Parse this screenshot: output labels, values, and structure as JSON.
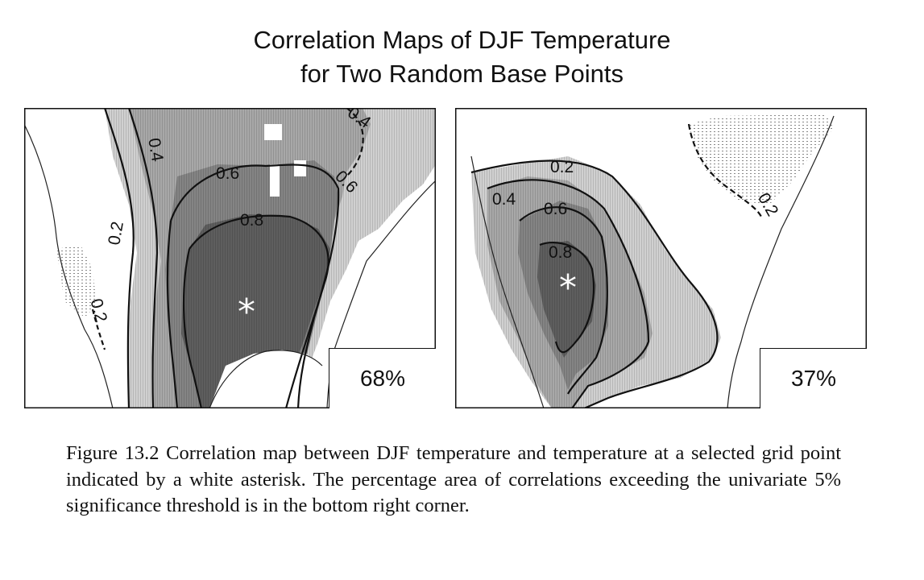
{
  "figure": {
    "title_line1": "Correlation Maps of DJF Temperature",
    "title_line2": "for Two Random Base Points",
    "panels": [
      {
        "percentage": "68%",
        "contour_labels": [
          "0.4",
          "0.6",
          "0.8",
          "0.2",
          "0.4",
          "0.6",
          "0.2"
        ],
        "base_point_marker": "*"
      },
      {
        "percentage": "37%",
        "contour_labels": [
          "0.2",
          "0.4",
          "0.6",
          "0.8",
          "0.2"
        ],
        "base_point_marker": "*"
      }
    ],
    "caption": "Figure 13.2 Correlation map between DJF temperature and temperature at a selected grid point indicated by a white asterisk. The percentage area of correlations exceeding the univariate 5% significance threshold is in the bottom right corner."
  },
  "colors": {
    "level_02": "#d0d0d0",
    "level_04": "#a8a8a8",
    "level_06": "#848484",
    "level_08": "#5e5e5e",
    "contour": "#111111",
    "coast": "#222222"
  }
}
